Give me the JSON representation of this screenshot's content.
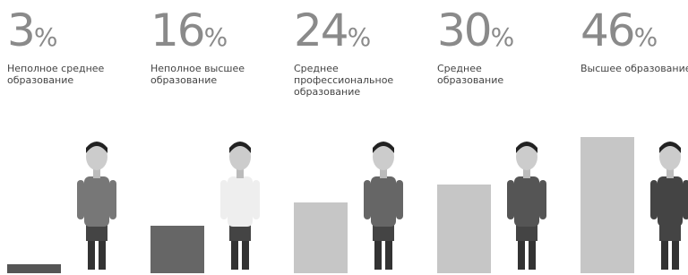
{
  "chart_data": {
    "type": "bar",
    "categories": [
      "Неполное среднее образование",
      "Неполное высшее образование",
      "Среднее профессиональное образование",
      "Среднее образование",
      "Высшее образование"
    ],
    "values": [
      3,
      16,
      24,
      30,
      46
    ],
    "value_labels": [
      "3%",
      "16%",
      "24%",
      "30%",
      "46%"
    ],
    "colors": [
      "#555555",
      "#666666",
      "#c6c6c6",
      "#c6c6c6",
      "#c6c6c6"
    ]
  }
}
